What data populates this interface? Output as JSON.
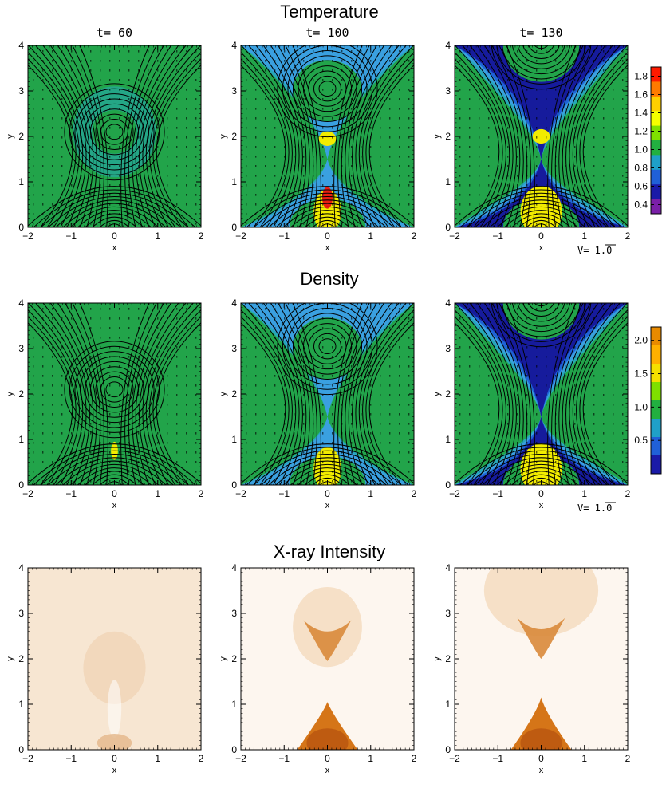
{
  "rows": [
    {
      "title": "Temperature"
    },
    {
      "title": "Density"
    },
    {
      "title": "X-ray Intensity"
    }
  ],
  "time_labels": [
    "t=  60",
    "t=  100",
    "t=  130"
  ],
  "velocity_label": "V=  1.0",
  "chart_data": [
    {
      "type": "heatmap",
      "title": "Temperature",
      "panels": [
        "t= 60",
        "t= 100",
        "t= 130"
      ],
      "xlabel": "x",
      "ylabel": "y",
      "xlim": [
        -2,
        2
      ],
      "ylim": [
        0,
        4
      ],
      "xticks": [
        -2,
        -1,
        0,
        1,
        2
      ],
      "yticks": [
        0,
        1,
        2,
        3,
        4
      ],
      "colorbar": {
        "ticks": [
          "1.8",
          "1.6",
          "1.4",
          "1.2",
          "1.0",
          "0.8",
          "0.6",
          "0.4"
        ],
        "values": [
          1.8,
          1.6,
          1.4,
          1.2,
          1.0,
          0.8,
          0.6,
          0.4
        ],
        "range": [
          0.3,
          1.9
        ],
        "colors": [
          "#ff1a00",
          "#ff7a00",
          "#ffd000",
          "#f5ff00",
          "#7fe000",
          "#22b040",
          "#1fa0c8",
          "#2060d8",
          "#1a1aa8",
          "#7a1fa8"
        ]
      },
      "velocity_scale": "V=  1.0"
    },
    {
      "type": "heatmap",
      "title": "Density",
      "panels": [
        "t= 60",
        "t= 100",
        "t= 130"
      ],
      "xlabel": "x",
      "ylabel": "y",
      "xlim": [
        -2,
        2
      ],
      "ylim": [
        0,
        4
      ],
      "xticks": [
        -2,
        -1,
        0,
        1,
        2
      ],
      "yticks": [
        0,
        1,
        2,
        3,
        4
      ],
      "colorbar": {
        "ticks": [
          "2.0",
          "1.5",
          "1.0",
          "0.5"
        ],
        "values": [
          2.0,
          1.5,
          1.0,
          0.5
        ],
        "range": [
          0.0,
          2.2
        ],
        "colors": [
          "#e88a00",
          "#ffb000",
          "#f5e000",
          "#7fe000",
          "#22b040",
          "#1fa0c8",
          "#2060d8",
          "#1a1aa8"
        ]
      },
      "velocity_scale": "V=  1.0"
    },
    {
      "type": "heatmap",
      "title": "X-ray Intensity",
      "panels": [
        "t= 60",
        "t= 100",
        "t= 130"
      ],
      "xlabel": "x",
      "ylabel": "y",
      "xlim": [
        -2,
        2
      ],
      "ylim": [
        0,
        4
      ],
      "xticks": [
        -2,
        -1,
        0,
        1,
        2
      ],
      "yticks": [
        0,
        1,
        2,
        3,
        4
      ]
    }
  ]
}
